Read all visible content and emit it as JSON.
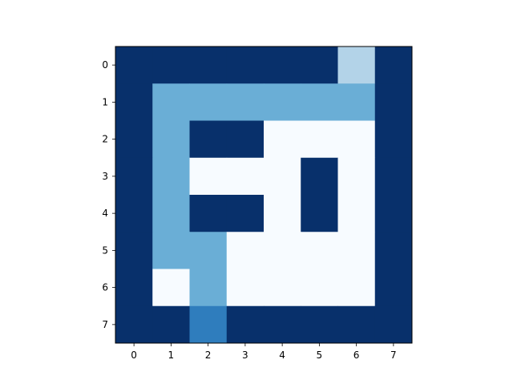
{
  "chart_data": {
    "type": "heatmap",
    "title": "",
    "xlabel": "",
    "ylabel": "",
    "colormap": "Blues",
    "value_range": [
      0,
      4
    ],
    "x_ticks": [
      "0",
      "1",
      "2",
      "3",
      "4",
      "5",
      "6",
      "7"
    ],
    "y_ticks": [
      "0",
      "1",
      "2",
      "3",
      "4",
      "5",
      "6",
      "7"
    ],
    "grid": false,
    "legend": "none",
    "values": [
      [
        4,
        4,
        4,
        4,
        4,
        4,
        1,
        4
      ],
      [
        4,
        2,
        2,
        2,
        2,
        2,
        2,
        4
      ],
      [
        4,
        2,
        4,
        4,
        0,
        0,
        0,
        4
      ],
      [
        4,
        2,
        0,
        0,
        0,
        4,
        0,
        4
      ],
      [
        4,
        2,
        4,
        4,
        0,
        4,
        0,
        4
      ],
      [
        4,
        2,
        2,
        0,
        0,
        0,
        0,
        4
      ],
      [
        4,
        0,
        2,
        0,
        0,
        0,
        0,
        4
      ],
      [
        4,
        4,
        3,
        4,
        4,
        4,
        4,
        4
      ]
    ],
    "colors": {
      "0": "#f7fbff",
      "1": "#b3d3e8",
      "2": "#6aaed6",
      "3": "#2f7dbd",
      "4": "#08306b"
    }
  }
}
